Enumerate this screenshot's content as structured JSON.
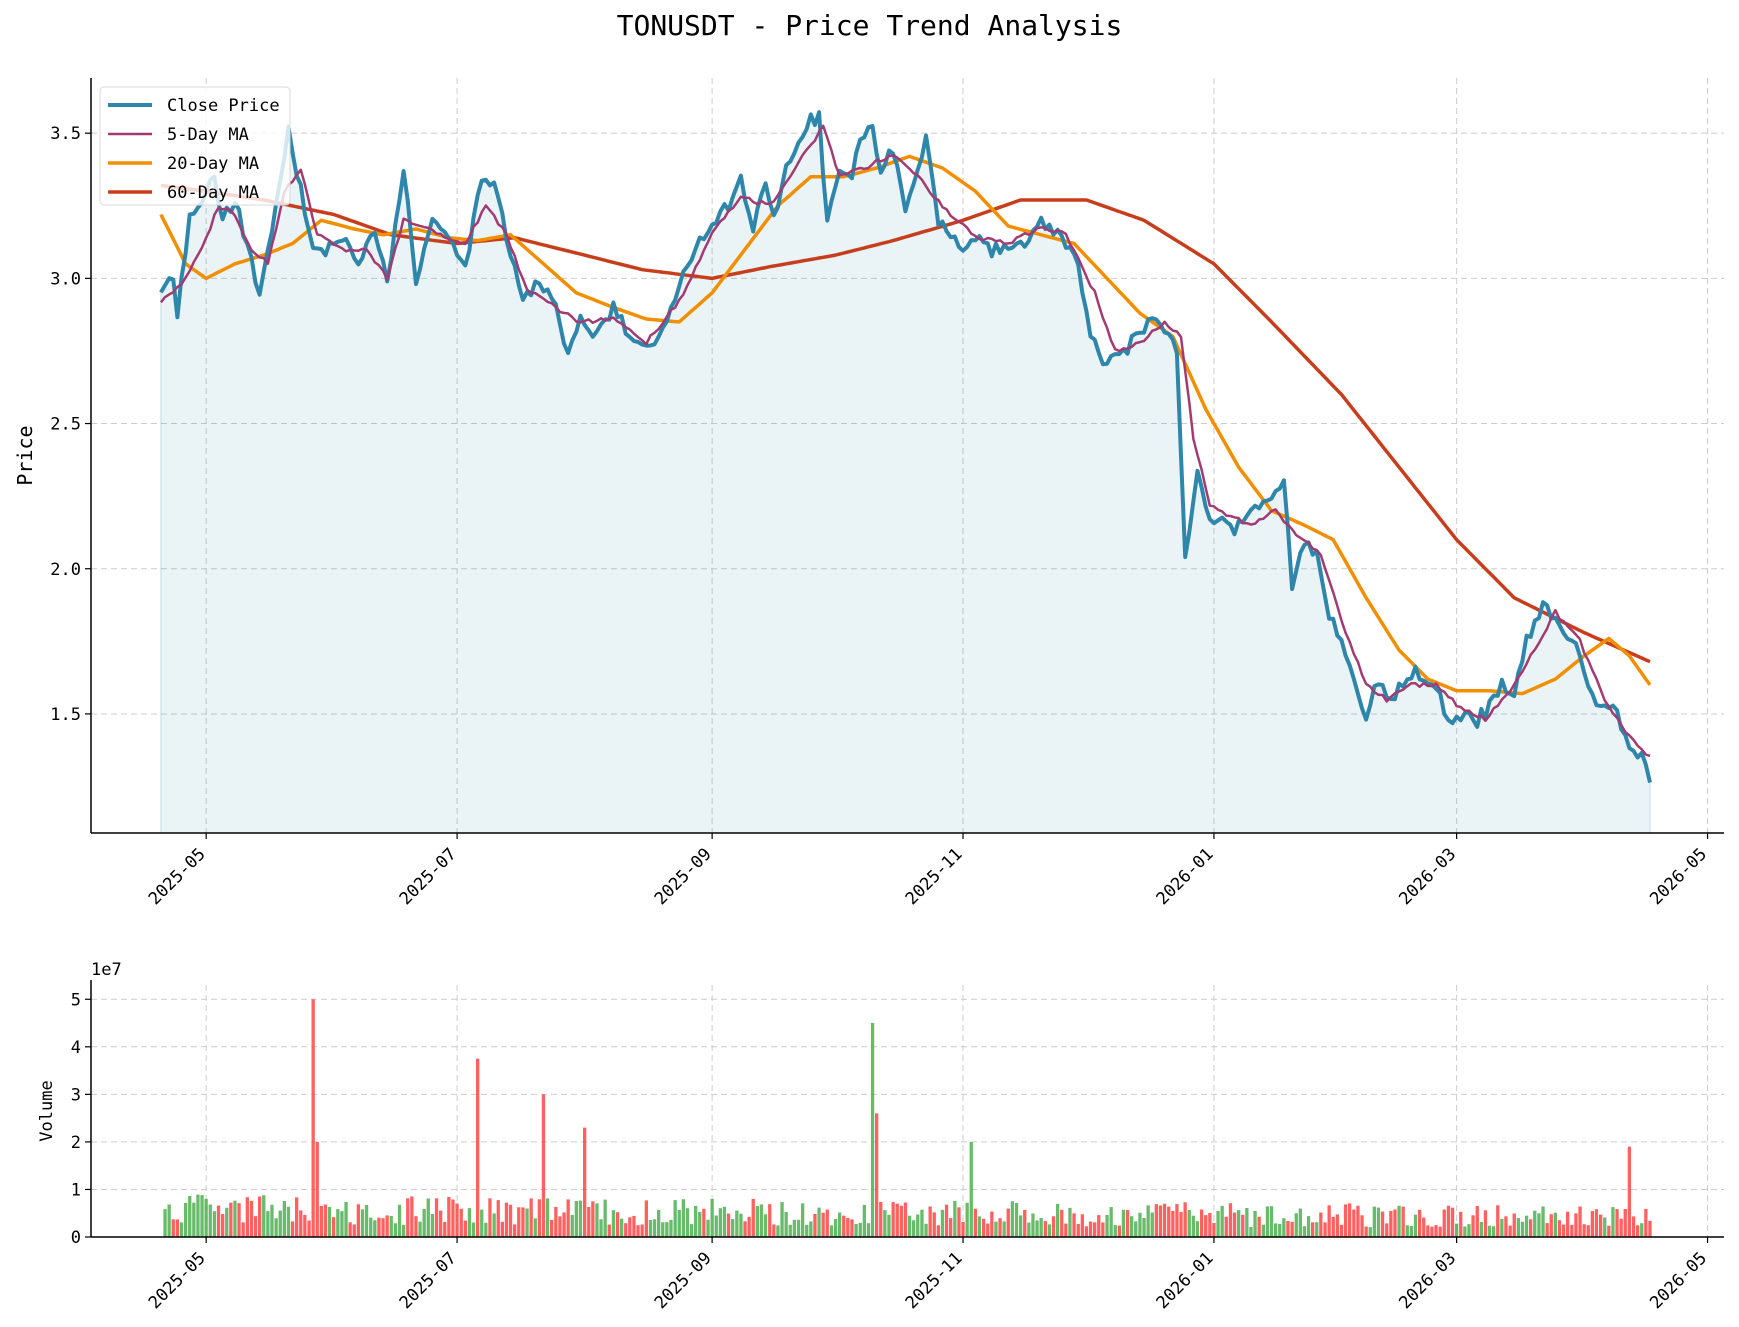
{
  "title": "TONUSDT - Price Trend Analysis",
  "colors": {
    "close": "#2e86ab",
    "ma5": "#a23b72",
    "ma20": "#f18f01",
    "ma60": "#c73e1d",
    "fill": "#2e86ab",
    "vol_up": "#4caf50",
    "vol_down": "#ff4444",
    "grid": "#cccccc"
  },
  "chart_data": [
    {
      "type": "line",
      "title": "TONUSDT - Price Trend Analysis",
      "xlabel": "",
      "ylabel": "Price",
      "xlim": [
        "2025-04-03",
        "2026-05-05"
      ],
      "ylim": [
        1.09,
        3.69
      ],
      "x_ticks": [
        "2025-05",
        "2025-07",
        "2025-09",
        "2025-11",
        "2026-01",
        "2026-03",
        "2026-05"
      ],
      "y_ticks": [
        "1.5",
        "2.0",
        "2.5",
        "3.0",
        "3.5"
      ],
      "grid": true,
      "legend_position": "top-left",
      "legend": [
        "Close Price",
        "5-Day MA",
        "20-Day MA",
        "60-Day MA"
      ],
      "anchors": {
        "close": [
          [
            "2025-04-20",
            2.96
          ],
          [
            "2025-04-23",
            2.99
          ],
          [
            "2025-04-24",
            2.89
          ],
          [
            "2025-04-27",
            3.2
          ],
          [
            "2025-04-30",
            3.25
          ],
          [
            "2025-05-03",
            3.35
          ],
          [
            "2025-05-05",
            3.2
          ],
          [
            "2025-05-08",
            3.28
          ],
          [
            "2025-05-11",
            3.1
          ],
          [
            "2025-05-14",
            2.96
          ],
          [
            "2025-05-17",
            3.18
          ],
          [
            "2025-05-21",
            3.5
          ],
          [
            "2025-05-24",
            3.3
          ],
          [
            "2025-05-27",
            3.08
          ],
          [
            "2025-05-31",
            3.1
          ],
          [
            "2025-06-04",
            3.12
          ],
          [
            "2025-06-07",
            3.05
          ],
          [
            "2025-06-11",
            3.15
          ],
          [
            "2025-06-14",
            2.98
          ],
          [
            "2025-06-18",
            3.38
          ],
          [
            "2025-06-21",
            3.0
          ],
          [
            "2025-06-25",
            3.2
          ],
          [
            "2025-06-29",
            3.12
          ],
          [
            "2025-07-03",
            3.03
          ],
          [
            "2025-07-06",
            3.3
          ],
          [
            "2025-07-10",
            3.35
          ],
          [
            "2025-07-13",
            3.15
          ],
          [
            "2025-07-17",
            2.95
          ],
          [
            "2025-07-21",
            2.97
          ],
          [
            "2025-07-25",
            2.92
          ],
          [
            "2025-07-28",
            2.73
          ],
          [
            "2025-07-31",
            2.88
          ],
          [
            "2025-08-04",
            2.8
          ],
          [
            "2025-08-08",
            2.9
          ],
          [
            "2025-08-12",
            2.8
          ],
          [
            "2025-08-16",
            2.75
          ],
          [
            "2025-08-20",
            2.82
          ],
          [
            "2025-08-24",
            2.98
          ],
          [
            "2025-08-28",
            3.1
          ],
          [
            "2025-09-01",
            3.2
          ],
          [
            "2025-09-05",
            3.25
          ],
          [
            "2025-09-08",
            3.33
          ],
          [
            "2025-09-11",
            3.15
          ],
          [
            "2025-09-14",
            3.35
          ],
          [
            "2025-09-16",
            3.2
          ],
          [
            "2025-09-19",
            3.4
          ],
          [
            "2025-09-22",
            3.48
          ],
          [
            "2025-09-25",
            3.55
          ],
          [
            "2025-09-27",
            3.55
          ],
          [
            "2025-09-29",
            3.2
          ],
          [
            "2025-10-02",
            3.38
          ],
          [
            "2025-10-05",
            3.35
          ],
          [
            "2025-10-07",
            3.5
          ],
          [
            "2025-10-10",
            3.5
          ],
          [
            "2025-10-12",
            3.35
          ],
          [
            "2025-10-15",
            3.45
          ],
          [
            "2025-10-18",
            3.25
          ],
          [
            "2025-10-21",
            3.35
          ],
          [
            "2025-10-23",
            3.5
          ],
          [
            "2025-10-26",
            3.2
          ],
          [
            "2025-10-29",
            3.15
          ],
          [
            "2025-11-02",
            3.1
          ],
          [
            "2025-11-05",
            3.15
          ],
          [
            "2025-11-08",
            3.1
          ],
          [
            "2025-11-12",
            3.12
          ],
          [
            "2025-11-16",
            3.1
          ],
          [
            "2025-11-20",
            3.2
          ],
          [
            "2025-11-24",
            3.15
          ],
          [
            "2025-11-28",
            3.1
          ],
          [
            "2025-12-02",
            2.8
          ],
          [
            "2025-12-05",
            2.72
          ],
          [
            "2025-12-09",
            2.73
          ],
          [
            "2025-12-13",
            2.8
          ],
          [
            "2025-12-17",
            2.85
          ],
          [
            "2025-12-20",
            2.82
          ],
          [
            "2025-12-23",
            2.75
          ],
          [
            "2025-12-25",
            2.05
          ],
          [
            "2025-12-28",
            2.35
          ],
          [
            "2025-12-31",
            2.15
          ],
          [
            "2026-01-03",
            2.2
          ],
          [
            "2026-01-06",
            2.12
          ],
          [
            "2026-01-10",
            2.2
          ],
          [
            "2026-01-14",
            2.22
          ],
          [
            "2026-01-18",
            2.3
          ],
          [
            "2026-01-20",
            1.95
          ],
          [
            "2026-01-23",
            2.1
          ],
          [
            "2026-01-26",
            2.05
          ],
          [
            "2026-01-29",
            1.85
          ],
          [
            "2026-02-01",
            1.75
          ],
          [
            "2026-02-04",
            1.6
          ],
          [
            "2026-02-07",
            1.5
          ],
          [
            "2026-02-10",
            1.62
          ],
          [
            "2026-02-13",
            1.55
          ],
          [
            "2026-02-16",
            1.6
          ],
          [
            "2026-02-19",
            1.65
          ],
          [
            "2026-02-22",
            1.62
          ],
          [
            "2026-02-25",
            1.55
          ],
          [
            "2026-02-28",
            1.45
          ],
          [
            "2026-03-03",
            1.5
          ],
          [
            "2026-03-06",
            1.48
          ],
          [
            "2026-03-09",
            1.52
          ],
          [
            "2026-03-12",
            1.62
          ],
          [
            "2026-03-15",
            1.55
          ],
          [
            "2026-03-18",
            1.75
          ],
          [
            "2026-03-22",
            1.88
          ],
          [
            "2026-03-25",
            1.82
          ],
          [
            "2026-03-28",
            1.75
          ],
          [
            "2026-03-31",
            1.72
          ],
          [
            "2026-04-03",
            1.55
          ],
          [
            "2026-04-06",
            1.52
          ],
          [
            "2026-04-09",
            1.5
          ],
          [
            "2026-04-12",
            1.38
          ],
          [
            "2026-04-15",
            1.35
          ],
          [
            "2026-04-17",
            1.27
          ]
        ],
        "ma5": [
          [
            "2025-04-20",
            2.92
          ],
          [
            "2025-04-25",
            2.98
          ],
          [
            "2025-04-30",
            3.1
          ],
          [
            "2025-05-04",
            3.25
          ],
          [
            "2025-05-08",
            3.22
          ],
          [
            "2025-05-12",
            3.1
          ],
          [
            "2025-05-16",
            3.05
          ],
          [
            "2025-05-20",
            3.3
          ],
          [
            "2025-05-24",
            3.38
          ],
          [
            "2025-05-28",
            3.15
          ],
          [
            "2025-06-03",
            3.1
          ],
          [
            "2025-06-09",
            3.1
          ],
          [
            "2025-06-14",
            3.0
          ],
          [
            "2025-06-18",
            3.2
          ],
          [
            "2025-06-23",
            3.18
          ],
          [
            "2025-06-28",
            3.14
          ],
          [
            "2025-07-03",
            3.12
          ],
          [
            "2025-07-08",
            3.25
          ],
          [
            "2025-07-13",
            3.15
          ],
          [
            "2025-07-18",
            2.96
          ],
          [
            "2025-07-25",
            2.9
          ],
          [
            "2025-07-31",
            2.85
          ],
          [
            "2025-08-08",
            2.86
          ],
          [
            "2025-08-16",
            2.78
          ],
          [
            "2025-08-24",
            2.92
          ],
          [
            "2025-09-02",
            3.18
          ],
          [
            "2025-09-08",
            3.28
          ],
          [
            "2025-09-15",
            3.25
          ],
          [
            "2025-09-22",
            3.4
          ],
          [
            "2025-09-28",
            3.52
          ],
          [
            "2025-10-02",
            3.35
          ],
          [
            "2025-10-08",
            3.38
          ],
          [
            "2025-10-15",
            3.43
          ],
          [
            "2025-10-21",
            3.35
          ],
          [
            "2025-10-27",
            3.25
          ],
          [
            "2025-11-04",
            3.14
          ],
          [
            "2025-11-12",
            3.12
          ],
          [
            "2025-11-20",
            3.18
          ],
          [
            "2025-11-26",
            3.15
          ],
          [
            "2025-12-03",
            2.95
          ],
          [
            "2025-12-08",
            2.75
          ],
          [
            "2025-12-14",
            2.78
          ],
          [
            "2025-12-20",
            2.85
          ],
          [
            "2025-12-24",
            2.8
          ],
          [
            "2025-12-27",
            2.45
          ],
          [
            "2025-12-31",
            2.22
          ],
          [
            "2026-01-05",
            2.18
          ],
          [
            "2026-01-10",
            2.15
          ],
          [
            "2026-01-16",
            2.2
          ],
          [
            "2026-01-21",
            2.12
          ],
          [
            "2026-01-27",
            2.05
          ],
          [
            "2026-02-02",
            1.78
          ],
          [
            "2026-02-07",
            1.6
          ],
          [
            "2026-02-12",
            1.55
          ],
          [
            "2026-02-18",
            1.6
          ],
          [
            "2026-02-24",
            1.6
          ],
          [
            "2026-03-02",
            1.52
          ],
          [
            "2026-03-08",
            1.48
          ],
          [
            "2026-03-14",
            1.58
          ],
          [
            "2026-03-20",
            1.72
          ],
          [
            "2026-03-25",
            1.85
          ],
          [
            "2026-03-31",
            1.75
          ],
          [
            "2026-04-06",
            1.55
          ],
          [
            "2026-04-12",
            1.42
          ],
          [
            "2026-04-17",
            1.35
          ]
        ],
        "ma20": [
          [
            "2025-04-20",
            3.22
          ],
          [
            "2025-04-26",
            3.05
          ],
          [
            "2025-05-01",
            3.0
          ],
          [
            "2025-05-08",
            3.05
          ],
          [
            "2025-05-15",
            3.08
          ],
          [
            "2025-05-22",
            3.12
          ],
          [
            "2025-05-29",
            3.2
          ],
          [
            "2025-06-06",
            3.17
          ],
          [
            "2025-06-13",
            3.15
          ],
          [
            "2025-06-21",
            3.17
          ],
          [
            "2025-06-29",
            3.14
          ],
          [
            "2025-07-06",
            3.13
          ],
          [
            "2025-07-14",
            3.15
          ],
          [
            "2025-07-22",
            3.05
          ],
          [
            "2025-07-30",
            2.95
          ],
          [
            "2025-08-08",
            2.9
          ],
          [
            "2025-08-16",
            2.86
          ],
          [
            "2025-08-24",
            2.85
          ],
          [
            "2025-09-01",
            2.95
          ],
          [
            "2025-09-09",
            3.1
          ],
          [
            "2025-09-17",
            3.25
          ],
          [
            "2025-09-25",
            3.35
          ],
          [
            "2025-10-03",
            3.35
          ],
          [
            "2025-10-11",
            3.38
          ],
          [
            "2025-10-19",
            3.42
          ],
          [
            "2025-10-27",
            3.38
          ],
          [
            "2025-11-04",
            3.3
          ],
          [
            "2025-11-12",
            3.18
          ],
          [
            "2025-11-20",
            3.15
          ],
          [
            "2025-11-28",
            3.12
          ],
          [
            "2025-12-06",
            3.0
          ],
          [
            "2025-12-14",
            2.88
          ],
          [
            "2025-12-22",
            2.8
          ],
          [
            "2025-12-30",
            2.55
          ],
          [
            "2026-01-07",
            2.35
          ],
          [
            "2026-01-15",
            2.2
          ],
          [
            "2026-01-23",
            2.15
          ],
          [
            "2026-01-30",
            2.1
          ],
          [
            "2026-02-07",
            1.9
          ],
          [
            "2026-02-15",
            1.72
          ],
          [
            "2026-02-22",
            1.62
          ],
          [
            "2026-03-01",
            1.58
          ],
          [
            "2026-03-09",
            1.58
          ],
          [
            "2026-03-17",
            1.57
          ],
          [
            "2026-03-25",
            1.62
          ],
          [
            "2026-04-01",
            1.7
          ],
          [
            "2026-04-07",
            1.76
          ],
          [
            "2026-04-12",
            1.7
          ],
          [
            "2026-04-17",
            1.6
          ]
        ],
        "ma60": [
          [
            "2025-04-20",
            3.32
          ],
          [
            "2025-05-01",
            3.3
          ],
          [
            "2025-05-15",
            3.27
          ],
          [
            "2025-06-01",
            3.22
          ],
          [
            "2025-06-15",
            3.15
          ],
          [
            "2025-07-01",
            3.12
          ],
          [
            "2025-07-15",
            3.14
          ],
          [
            "2025-08-01",
            3.08
          ],
          [
            "2025-08-15",
            3.03
          ],
          [
            "2025-09-01",
            3.0
          ],
          [
            "2025-09-15",
            3.04
          ],
          [
            "2025-10-01",
            3.08
          ],
          [
            "2025-10-15",
            3.13
          ],
          [
            "2025-11-01",
            3.2
          ],
          [
            "2025-11-15",
            3.27
          ],
          [
            "2025-12-01",
            3.27
          ],
          [
            "2025-12-15",
            3.2
          ],
          [
            "2026-01-01",
            3.05
          ],
          [
            "2026-01-15",
            2.85
          ],
          [
            "2026-02-01",
            2.6
          ],
          [
            "2026-02-15",
            2.35
          ],
          [
            "2026-03-01",
            2.1
          ],
          [
            "2026-03-15",
            1.9
          ],
          [
            "2026-04-01",
            1.78
          ],
          [
            "2026-04-17",
            1.68
          ]
        ]
      }
    },
    {
      "type": "bar",
      "title": "",
      "xlabel": "",
      "ylabel": "Volume",
      "scale_note": "1e7",
      "ylim": [
        0,
        5.3
      ],
      "y_ticks": [
        "0",
        "1",
        "2",
        "3",
        "4",
        "5"
      ],
      "x_ticks": [
        "2025-05",
        "2025-07",
        "2025-09",
        "2025-11",
        "2026-01",
        "2026-03",
        "2026-05"
      ],
      "grid": true,
      "notable_spikes": [
        [
          "2025-05-27",
          5.0,
          "down"
        ],
        [
          "2025-05-28",
          2.0,
          "down"
        ],
        [
          "2025-07-06",
          3.75,
          "down"
        ],
        [
          "2025-07-22",
          3.0,
          "down"
        ],
        [
          "2025-08-01",
          2.3,
          "down"
        ],
        [
          "2025-10-10",
          4.5,
          "up"
        ],
        [
          "2025-10-11",
          2.6,
          "down"
        ],
        [
          "2025-11-03",
          2.0,
          "up"
        ],
        [
          "2026-04-12",
          1.9,
          "down"
        ]
      ]
    }
  ]
}
